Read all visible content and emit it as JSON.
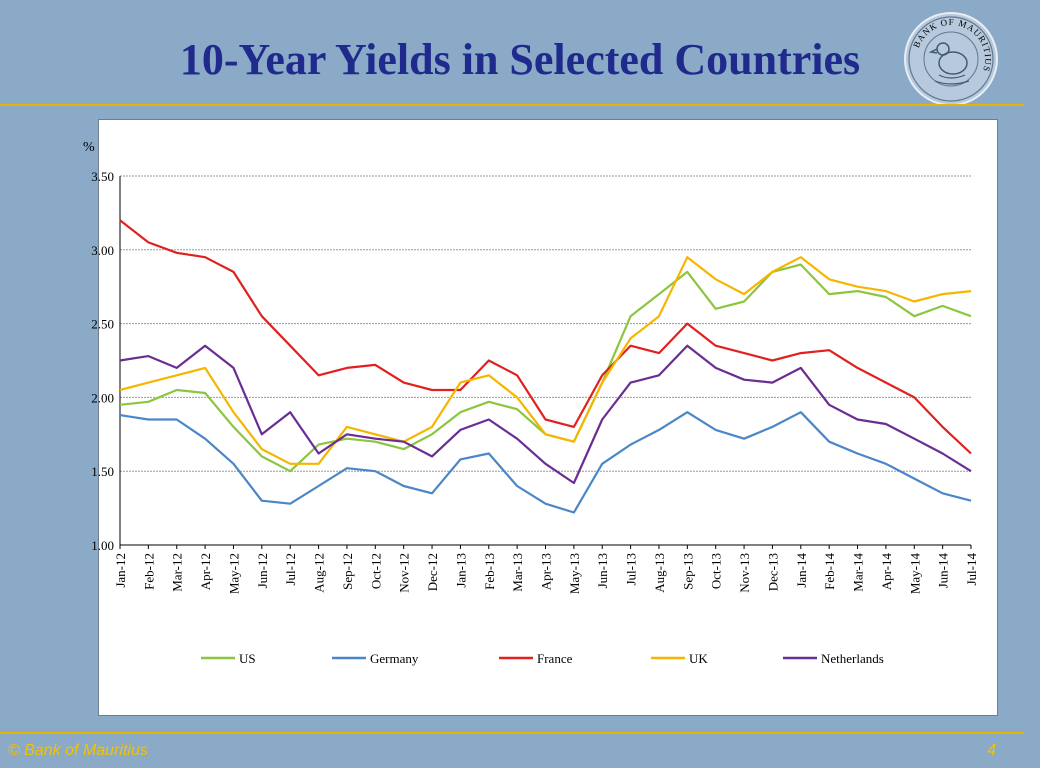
{
  "slide": {
    "title": "10-Year Yields in Selected Countries",
    "footer_left": "© Bank of Mauritius",
    "page_number": "4",
    "seal_text": "BANK OF MAURITIUS"
  },
  "colors": {
    "background": "#8aaac8",
    "title": "#1f2a8c",
    "rule": "#e8b400",
    "footer": "#f2c200"
  },
  "chart_data": {
    "type": "line",
    "title": "",
    "ylabel": "%",
    "xlabel": "",
    "ylim": [
      1.0,
      3.5
    ],
    "yticks": [
      "1.00",
      "1.50",
      "2.00",
      "2.50",
      "3.00",
      "3.50"
    ],
    "y_tick_values": [
      1.0,
      1.5,
      2.0,
      2.5,
      3.0,
      3.5
    ],
    "grid": "horizontal",
    "legend_position": "bottom",
    "categories": [
      "Jan-12",
      "Feb-12",
      "Mar-12",
      "Apr-12",
      "May-12",
      "Jun-12",
      "Jul-12",
      "Aug-12",
      "Sep-12",
      "Oct-12",
      "Nov-12",
      "Dec-12",
      "Jan-13",
      "Feb-13",
      "Mar-13",
      "Apr-13",
      "May-13",
      "Jun-13",
      "Jul-13",
      "Aug-13",
      "Sep-13",
      "Oct-13",
      "Nov-13",
      "Dec-13",
      "Jan-14",
      "Feb-14",
      "Mar-14",
      "Apr-14",
      "May-14",
      "Jun-14",
      "Jul-14"
    ],
    "series": [
      {
        "name": "US",
        "color": "#8cc63e",
        "values": [
          1.95,
          1.97,
          2.05,
          2.03,
          1.8,
          1.6,
          1.5,
          1.68,
          1.72,
          1.7,
          1.65,
          1.75,
          1.9,
          1.97,
          1.92,
          1.75,
          1.7,
          2.1,
          2.55,
          2.7,
          2.85,
          2.6,
          2.65,
          2.85,
          2.9,
          2.7,
          2.72,
          2.68,
          2.55,
          2.62,
          2.55
        ]
      },
      {
        "name": "Germany",
        "color": "#4a86c8",
        "values": [
          1.88,
          1.85,
          1.85,
          1.72,
          1.55,
          1.3,
          1.28,
          1.4,
          1.52,
          1.5,
          1.4,
          1.35,
          1.58,
          1.62,
          1.4,
          1.28,
          1.22,
          1.55,
          1.68,
          1.78,
          1.9,
          1.78,
          1.72,
          1.8,
          1.9,
          1.7,
          1.62,
          1.55,
          1.45,
          1.35,
          1.3
        ]
      },
      {
        "name": "France",
        "color": "#e0211f",
        "values": [
          3.2,
          3.05,
          2.98,
          2.95,
          2.85,
          2.55,
          2.35,
          2.15,
          2.2,
          2.22,
          2.1,
          2.05,
          2.05,
          2.25,
          2.15,
          1.85,
          1.8,
          2.15,
          2.35,
          2.3,
          2.5,
          2.35,
          2.3,
          2.25,
          2.3,
          2.32,
          2.2,
          2.1,
          2.0,
          1.8,
          1.62
        ]
      },
      {
        "name": "UK",
        "color": "#f5b600",
        "values": [
          2.05,
          2.1,
          2.15,
          2.2,
          1.9,
          1.65,
          1.55,
          1.55,
          1.8,
          1.75,
          1.7,
          1.8,
          2.1,
          2.15,
          2.0,
          1.75,
          1.7,
          2.1,
          2.4,
          2.55,
          2.95,
          2.8,
          2.7,
          2.85,
          2.95,
          2.8,
          2.75,
          2.72,
          2.65,
          2.7,
          2.72
        ]
      },
      {
        "name": "Netherlands",
        "color": "#6a2d91",
        "values": [
          2.25,
          2.28,
          2.2,
          2.35,
          2.2,
          1.75,
          1.9,
          1.62,
          1.75,
          1.72,
          1.7,
          1.6,
          1.78,
          1.85,
          1.72,
          1.55,
          1.42,
          1.85,
          2.1,
          2.15,
          2.35,
          2.2,
          2.12,
          2.1,
          2.2,
          1.95,
          1.85,
          1.82,
          1.72,
          1.62,
          1.5
        ]
      }
    ]
  }
}
